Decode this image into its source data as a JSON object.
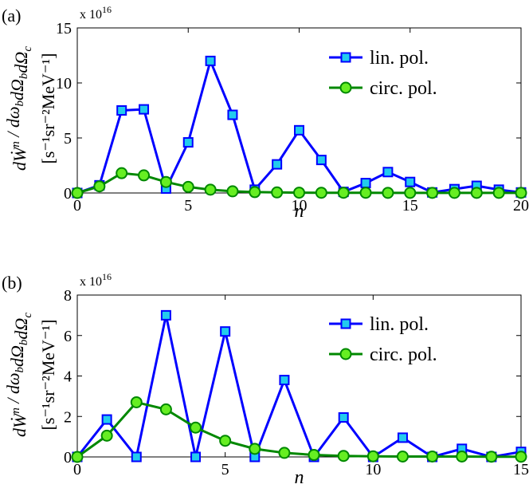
{
  "chart_data": [
    {
      "type": "line",
      "panel_label": "(a)",
      "multiplier": "x 10",
      "multiplier_exp": "16",
      "xlabel": "n",
      "ylabel_line1": "dẆ",
      "ylabel_line1_sup": "n",
      "ylabel_line1_rest": " / dω",
      "ylabel_line2": "[s⁻¹sr⁻²MeV⁻¹]",
      "xlim": [
        0,
        20
      ],
      "ylim": [
        0,
        15
      ],
      "xticks": [
        0,
        5,
        10,
        15,
        20
      ],
      "yticks": [
        0,
        5,
        10,
        15
      ],
      "grid": false,
      "legend_position": "top-right",
      "series": [
        {
          "name": "lin. pol.",
          "color": "#0000ff",
          "marker": "square",
          "marker_fill": "#22ccee",
          "x": [
            0,
            1,
            2,
            3,
            4,
            5,
            6,
            7,
            8,
            9,
            10,
            11,
            12,
            13,
            14,
            15,
            16,
            17,
            18,
            19,
            20
          ],
          "y": [
            0,
            0.7,
            7.5,
            7.6,
            0.4,
            4.6,
            12.0,
            7.1,
            0.3,
            2.6,
            5.7,
            3.0,
            0.1,
            0.9,
            1.9,
            1.0,
            0.05,
            0.35,
            0.65,
            0.3,
            0.05
          ]
        },
        {
          "name": "circ. pol.",
          "color": "#008800",
          "marker": "circle",
          "marker_fill": "#66ee22",
          "x": [
            0,
            1,
            2,
            3,
            4,
            5,
            6,
            7,
            8,
            9,
            10,
            11,
            12,
            13,
            14,
            15,
            16,
            17,
            18,
            19,
            20
          ],
          "y": [
            0,
            0.6,
            1.8,
            1.6,
            1.0,
            0.55,
            0.3,
            0.15,
            0.08,
            0.05,
            0.03,
            0.02,
            0.02,
            0.02,
            0.01,
            0.01,
            0.01,
            0.01,
            0.01,
            0.01,
            0.01
          ]
        }
      ]
    },
    {
      "type": "line",
      "panel_label": "(b)",
      "multiplier": "x 10",
      "multiplier_exp": "16",
      "xlabel": "n",
      "ylabel_line1": "dẆ",
      "ylabel_line1_sup": "n",
      "ylabel_line1_rest": " / dω",
      "ylabel_line2": "[s⁻¹sr⁻²MeV⁻¹]",
      "xlim": [
        0,
        15
      ],
      "ylim": [
        0,
        8
      ],
      "xticks": [
        0,
        5,
        10,
        15
      ],
      "yticks": [
        0,
        2,
        4,
        6,
        8
      ],
      "grid": false,
      "legend_position": "top-right",
      "series": [
        {
          "name": "lin. pol.",
          "color": "#0000ff",
          "marker": "square",
          "marker_fill": "#22ccee",
          "x": [
            0,
            1,
            2,
            3,
            4,
            5,
            6,
            7,
            8,
            9,
            10,
            11,
            12,
            13,
            14,
            15
          ],
          "y": [
            0,
            1.85,
            0,
            7.0,
            0,
            6.2,
            0,
            3.8,
            0,
            1.95,
            0,
            0.95,
            0,
            0.4,
            0,
            0.25
          ]
        },
        {
          "name": "circ. pol.",
          "color": "#008800",
          "marker": "circle",
          "marker_fill": "#66ee22",
          "x": [
            0,
            1,
            2,
            3,
            4,
            5,
            6,
            7,
            8,
            9,
            10,
            11,
            12,
            13,
            14,
            15
          ],
          "y": [
            0,
            1.05,
            2.7,
            2.35,
            1.45,
            0.8,
            0.4,
            0.2,
            0.1,
            0.05,
            0.03,
            0.02,
            0.02,
            0.02,
            0.01,
            0.01
          ]
        }
      ]
    }
  ]
}
